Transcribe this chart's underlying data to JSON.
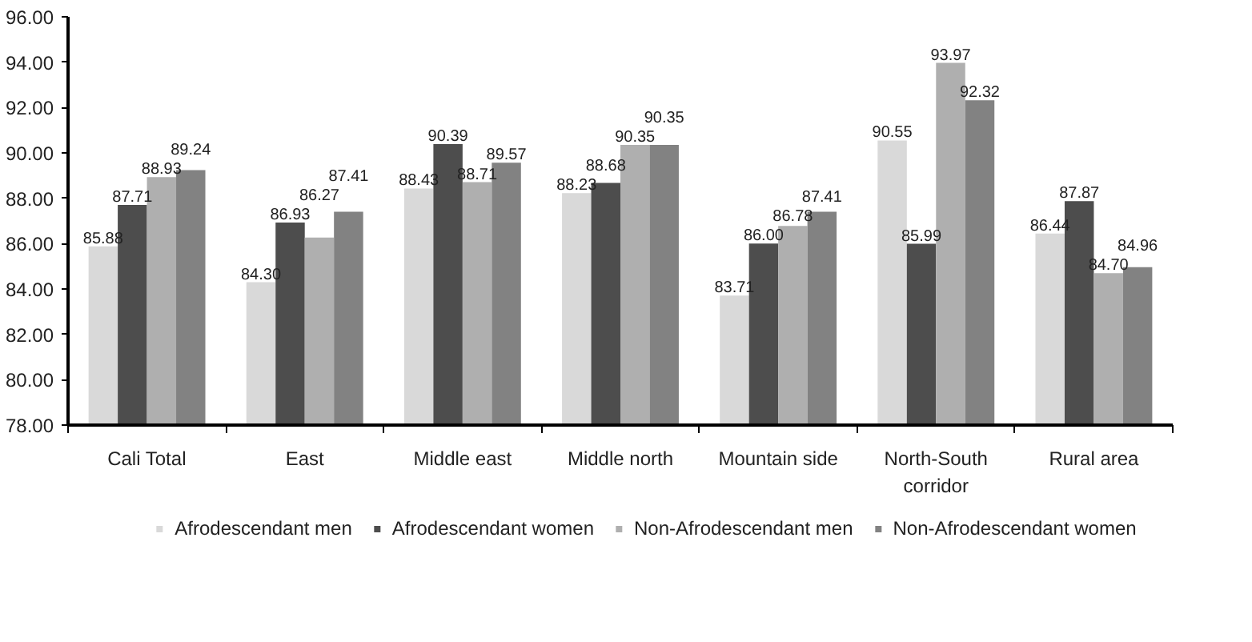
{
  "chart_data": {
    "type": "bar",
    "categories": [
      "Cali Total",
      "East",
      "Middle east",
      "Middle north",
      "Mountain side",
      "North-South corridor",
      "Rural area"
    ],
    "series": [
      {
        "name": "Afrodescendant men",
        "color": "#d9d9d9",
        "values": [
          85.88,
          84.3,
          88.43,
          88.23,
          83.71,
          90.55,
          86.44
        ],
        "value_labels": [
          "85.88",
          "84.30",
          "88.43",
          "88.23",
          "83.71",
          "90.55",
          "86.44"
        ]
      },
      {
        "name": "Afrodescendant women",
        "color": "#4d4d4d",
        "values": [
          87.71,
          86.93,
          90.39,
          88.68,
          86.0,
          85.99,
          87.87
        ],
        "value_labels": [
          "87.71",
          "86.93",
          "90.39",
          "88.68",
          "86.00",
          "85.99",
          "87.87"
        ]
      },
      {
        "name": "Non-Afrodescendant men",
        "color": "#afafaf",
        "values": [
          88.93,
          86.27,
          88.71,
          90.35,
          86.78,
          93.97,
          84.7
        ],
        "value_labels": [
          "88.93",
          "86.27",
          "88.71",
          "90.35",
          "86.78",
          "93.97",
          "84.70"
        ]
      },
      {
        "name": "Non-Afrodescendant women",
        "color": "#828282",
        "values": [
          89.24,
          87.41,
          89.57,
          90.35,
          87.41,
          92.32,
          84.96
        ],
        "value_labels": [
          "89.24",
          "87.41",
          "89.57",
          "90.35",
          "87.41",
          "92.32",
          "84.96"
        ]
      }
    ],
    "ylim": [
      78,
      96
    ],
    "yticks": [
      {
        "value": 78,
        "label": "78.00"
      },
      {
        "value": 80,
        "label": "80.00"
      },
      {
        "value": 82,
        "label": "82.00"
      },
      {
        "value": 84,
        "label": "84.00"
      },
      {
        "value": 86,
        "label": "86.00"
      },
      {
        "value": 88,
        "label": "88.00"
      },
      {
        "value": 90,
        "label": "90.00"
      },
      {
        "value": 92,
        "label": "92.00"
      },
      {
        "value": 94,
        "label": "94.00"
      },
      {
        "value": 96,
        "label": "96.00"
      }
    ],
    "legend": "bottom"
  }
}
